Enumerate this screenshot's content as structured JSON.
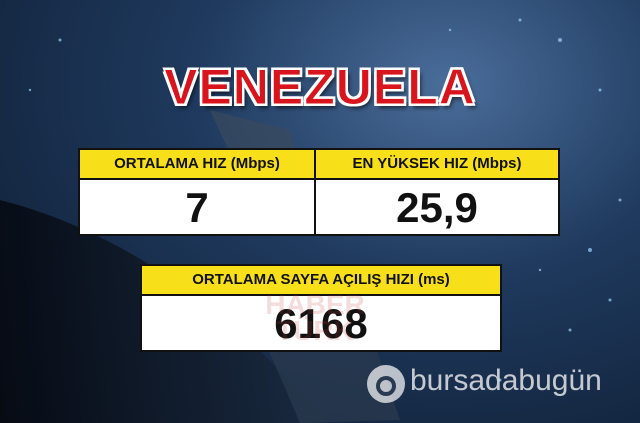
{
  "title": "VENEZUELA",
  "boxes": [
    {
      "label": "ORTALAMA HIZ (Mbps)",
      "value": "7"
    },
    {
      "label": "EN YÜKSEK HIZ (Mbps)",
      "value": "25,9"
    },
    {
      "label": "ORTALAMA SAYFA AÇILIŞ HIZI (ms)",
      "value": "6168"
    }
  ],
  "watermarks": [
    "HABER",
    "TÜRK",
    "bursadabugün"
  ]
}
